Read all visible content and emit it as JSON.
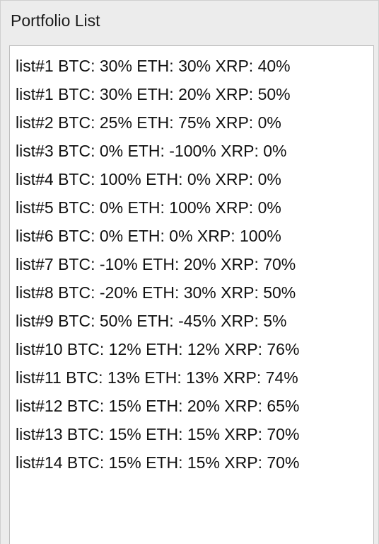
{
  "panel": {
    "title": "Portfolio List"
  },
  "portfolio_list": {
    "items": [
      "list#1 BTC: 30% ETH: 30% XRP: 40%",
      "list#1 BTC: 30% ETH: 20% XRP: 50%",
      "list#2 BTC: 25% ETH: 75% XRP: 0%",
      "list#3 BTC: 0% ETH: -100% XRP: 0%",
      "list#4 BTC: 100% ETH: 0% XRP: 0%",
      "list#5 BTC: 0% ETH: 100% XRP: 0%",
      "list#6 BTC: 0% ETH: 0% XRP: 100%",
      "list#7 BTC: -10% ETH: 20% XRP: 70%",
      "list#8 BTC: -20% ETH: 30% XRP: 50%",
      "list#9 BTC: 50% ETH: -45% XRP: 5%",
      "list#10 BTC: 12% ETH: 12% XRP: 76%",
      "list#11 BTC: 13% ETH: 13% XRP: 74%",
      "list#12 BTC: 15% ETH: 20% XRP: 65%",
      "list#13 BTC: 15% ETH: 15% XRP: 70%",
      "list#14 BTC: 15% ETH: 15% XRP: 70%"
    ]
  }
}
